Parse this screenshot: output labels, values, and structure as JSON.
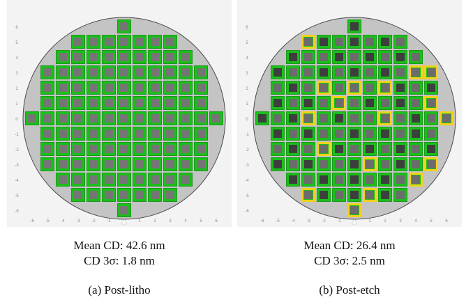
{
  "axis_ticks": [
    "-6",
    "-5",
    "-4",
    "-3",
    "-2",
    "-1",
    "0",
    "1",
    "2",
    "3",
    "4",
    "5",
    "6"
  ],
  "colors": {
    "background": "#f3f3f3",
    "wafer": "#c4c4c4",
    "die_fill": "#18c018",
    "die_border": "#0a8a0a",
    "die_center_litho": "#757575",
    "die_center_etch_light": "#6c6c6c",
    "die_center_etch_dark": "#3e3e3e",
    "highlight": "#f2d21a",
    "tick_text": "#8a8a8a"
  },
  "die_rows": [
    {
      "y": 6,
      "x": [
        0
      ]
    },
    {
      "y": 5,
      "x": [
        -3,
        -2,
        -1,
        0,
        1,
        2,
        3
      ]
    },
    {
      "y": 4,
      "x": [
        -4,
        -3,
        -2,
        -1,
        0,
        1,
        2,
        3,
        4
      ]
    },
    {
      "y": 3,
      "x": [
        -5,
        -4,
        -3,
        -2,
        -1,
        0,
        1,
        2,
        3,
        4,
        5
      ]
    },
    {
      "y": 2,
      "x": [
        -5,
        -4,
        -3,
        -2,
        -1,
        0,
        1,
        2,
        3,
        4,
        5
      ]
    },
    {
      "y": 1,
      "x": [
        -5,
        -4,
        -3,
        -2,
        -1,
        0,
        1,
        2,
        3,
        4,
        5
      ]
    },
    {
      "y": 0,
      "x": [
        -6,
        -5,
        -4,
        -3,
        -2,
        -1,
        0,
        1,
        2,
        3,
        4,
        5,
        6
      ]
    },
    {
      "y": -1,
      "x": [
        -5,
        -4,
        -3,
        -2,
        -1,
        0,
        1,
        2,
        3,
        4,
        5
      ]
    },
    {
      "y": -2,
      "x": [
        -5,
        -4,
        -3,
        -2,
        -1,
        0,
        1,
        2,
        3,
        4,
        5
      ]
    },
    {
      "y": -3,
      "x": [
        -5,
        -4,
        -3,
        -2,
        -1,
        0,
        1,
        2,
        3,
        4,
        5
      ]
    },
    {
      "y": -4,
      "x": [
        -4,
        -3,
        -2,
        -1,
        0,
        1,
        2,
        3,
        4
      ]
    },
    {
      "y": -5,
      "x": [
        -3,
        -2,
        -1,
        0,
        1,
        2,
        3
      ]
    },
    {
      "y": -6,
      "x": [
        0
      ]
    }
  ],
  "panels": [
    {
      "id": "post-litho",
      "mean_cd": "Mean CD: 42.6 nm",
      "cd_3sigma": "CD 3σ: 1.8 nm",
      "label": "(a) Post-litho",
      "highlighted_dies": [],
      "dark_dies": []
    },
    {
      "id": "post-etch",
      "mean_cd": "Mean CD: 26.4 nm",
      "cd_3sigma": "CD 3σ: 2.5 nm",
      "label": "(b) Post-etch",
      "highlighted_dies": [
        [
          -3,
          5
        ],
        [
          4,
          3
        ],
        [
          5,
          3
        ],
        [
          -2,
          2
        ],
        [
          0,
          2
        ],
        [
          2,
          2
        ],
        [
          -1,
          1
        ],
        [
          5,
          1
        ],
        [
          -3,
          0
        ],
        [
          2,
          0
        ],
        [
          6,
          0
        ],
        [
          -2,
          -2
        ],
        [
          1,
          -3
        ],
        [
          5,
          -3
        ],
        [
          4,
          -4
        ],
        [
          -3,
          -5
        ],
        [
          1,
          -5
        ],
        [
          0,
          -6
        ]
      ],
      "dark_dies": [
        [
          0,
          6
        ],
        [
          -2,
          5
        ],
        [
          0,
          5
        ],
        [
          2,
          5
        ],
        [
          -4,
          4
        ],
        [
          -1,
          4
        ],
        [
          1,
          4
        ],
        [
          3,
          4
        ],
        [
          -5,
          3
        ],
        [
          -2,
          3
        ],
        [
          0,
          3
        ],
        [
          2,
          3
        ],
        [
          -4,
          2
        ],
        [
          3,
          2
        ],
        [
          5,
          2
        ],
        [
          -5,
          1
        ],
        [
          -3,
          1
        ],
        [
          1,
          1
        ],
        [
          3,
          1
        ],
        [
          -6,
          0
        ],
        [
          -4,
          0
        ],
        [
          -1,
          0
        ],
        [
          4,
          0
        ],
        [
          -5,
          -1
        ],
        [
          -3,
          -1
        ],
        [
          0,
          -1
        ],
        [
          2,
          -1
        ],
        [
          4,
          -1
        ],
        [
          -4,
          -2
        ],
        [
          -1,
          -2
        ],
        [
          1,
          -2
        ],
        [
          3,
          -2
        ],
        [
          5,
          -2
        ],
        [
          -5,
          -3
        ],
        [
          -3,
          -3
        ],
        [
          0,
          -3
        ],
        [
          3,
          -3
        ],
        [
          -4,
          -4
        ],
        [
          -2,
          -4
        ],
        [
          0,
          -4
        ],
        [
          2,
          -4
        ],
        [
          -2,
          -5
        ],
        [
          0,
          -5
        ],
        [
          2,
          -5
        ]
      ]
    }
  ]
}
